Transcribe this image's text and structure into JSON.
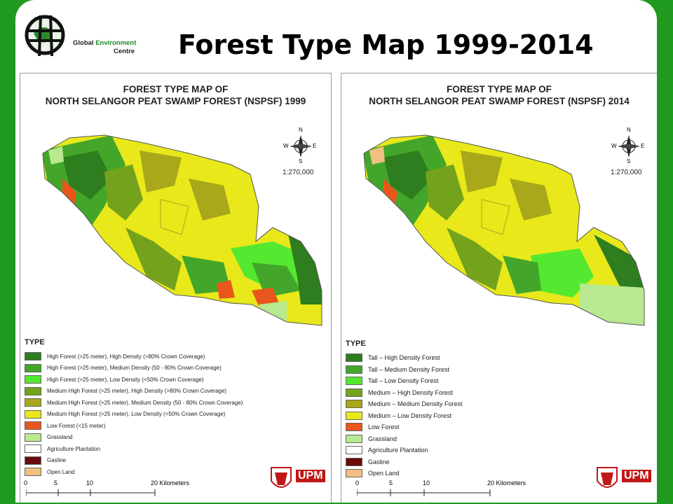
{
  "header": {
    "logo_name_part1": "Global",
    "logo_name_part2": "Environment",
    "logo_name_line2": "Centre",
    "title": "Forest Type Map 1999-2014"
  },
  "maps": [
    {
      "title_line1": "FOREST TYPE MAP OF",
      "title_line2": "NORTH SELANGOR PEAT SWAMP FOREST (NSPSF) 1999",
      "scale": "1:270,000",
      "compass": {
        "n": "N",
        "s": "S",
        "e": "E",
        "w": "W"
      },
      "legend_heading": "TYPE",
      "legend": [
        {
          "label": "High Forest (>25 meter), High Density (>80% Crown Coverage)",
          "color": "#2e7d1e"
        },
        {
          "label": "High Forest (>25 meter), Medium Density (50 - 80% Crown Coverage)",
          "color": "#43a62a"
        },
        {
          "label": "High Forest (>25 meter), Low Density (<50% Crown Coverage)",
          "color": "#55e830"
        },
        {
          "label": "Medium High Forest (>25 meter), High Density (>80% Crown Coverage)",
          "color": "#74a21c"
        },
        {
          "label": "Medium High Forest (>25 meter), Medium Density (50 - 80% Crown Coverage)",
          "color": "#a8a81a"
        },
        {
          "label": "Medium High Forest (>25 meter), Low Density (<50% Crown Coverage)",
          "color": "#e8e81a"
        },
        {
          "label": "Low Forest (<15 meter)",
          "color": "#e8561c"
        },
        {
          "label": "Grassland",
          "color": "#b8e890"
        },
        {
          "label": "Agriculture Plantation",
          "color": "#ffffff"
        },
        {
          "label": "Gasline",
          "color": "#6a0a0a"
        },
        {
          "label": "Open Land",
          "color": "#f0c080"
        }
      ],
      "scale_ticks": [
        "0",
        "5",
        "10",
        "20 Kilometers"
      ],
      "institution": "UPM"
    },
    {
      "title_line1": "FOREST TYPE MAP OF",
      "title_line2": "NORTH SELANGOR PEAT SWAMP FOREST (NSPSF) 2014",
      "scale": "1:270,000",
      "compass": {
        "n": "N",
        "s": "S",
        "e": "E",
        "w": "W"
      },
      "legend_heading": "TYPE",
      "legend": [
        {
          "label": "Tall – High Density Forest",
          "color": "#2e7d1e"
        },
        {
          "label": "Tall – Medium Density Forest",
          "color": "#43a62a"
        },
        {
          "label": "Tall – Low Density Forest",
          "color": "#55e830"
        },
        {
          "label": "Medium – High Density Forest",
          "color": "#74a21c"
        },
        {
          "label": "Medium – Medium Density Forest",
          "color": "#a8a81a"
        },
        {
          "label": "Medium – Low Density Forest",
          "color": "#e8e81a"
        },
        {
          "label": "Low  Forest",
          "color": "#e8561c"
        },
        {
          "label": "Grassland",
          "color": "#b8e890"
        },
        {
          "label": "Agriculture Plantation",
          "color": "#ffffff"
        },
        {
          "label": "Gasline",
          "color": "#6a0a0a"
        },
        {
          "label": "Open Land",
          "color": "#f0c080"
        }
      ],
      "scale_ticks": [
        "0",
        "5",
        "10",
        "20 Kilometers"
      ],
      "institution": "UPM"
    }
  ]
}
